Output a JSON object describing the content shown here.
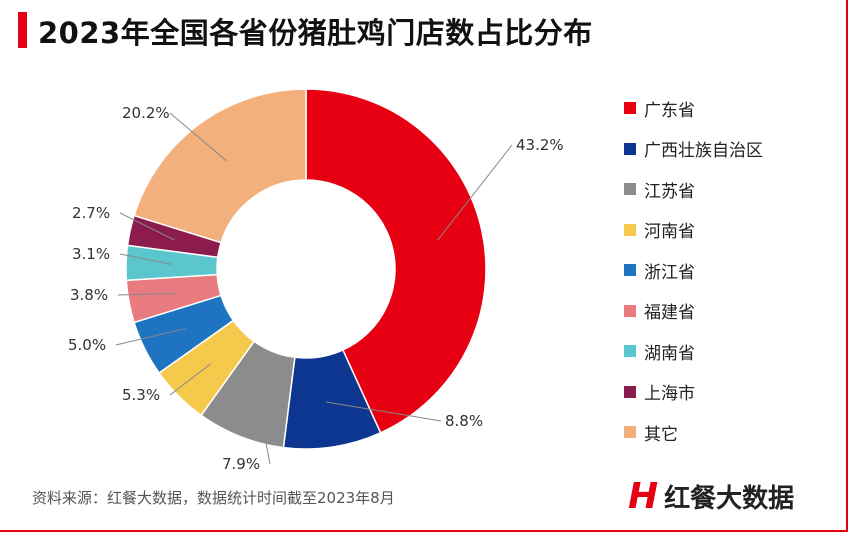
{
  "title": "2023年全国各省份猪肚鸡门店数占比分布",
  "source": "资料来源：红餐大数据，数据统计时间截至2023年8月",
  "logo": {
    "mark": "H",
    "text": "红餐大数据"
  },
  "chart_data": {
    "type": "pie",
    "donut": true,
    "title": "2023年全国各省份猪肚鸡门店数占比分布",
    "legend_position": "right",
    "categories": [
      "广东省",
      "广西壮族自治区",
      "江苏省",
      "河南省",
      "浙江省",
      "福建省",
      "湖南省",
      "上海市",
      "其它"
    ],
    "values": [
      43.2,
      8.8,
      7.9,
      5.3,
      5.0,
      3.8,
      3.1,
      2.7,
      20.2
    ],
    "labels": [
      "43.2%",
      "8.8%",
      "7.9%",
      "5.3%",
      "5.0%",
      "3.8%",
      "3.1%",
      "2.7%",
      "20.2%"
    ],
    "colors": [
      "#e60012",
      "#0d3690",
      "#8c8c8c",
      "#f5c94c",
      "#1f74c2",
      "#e87b80",
      "#5cc6cf",
      "#8c1c4e",
      "#f4b07c"
    ]
  }
}
